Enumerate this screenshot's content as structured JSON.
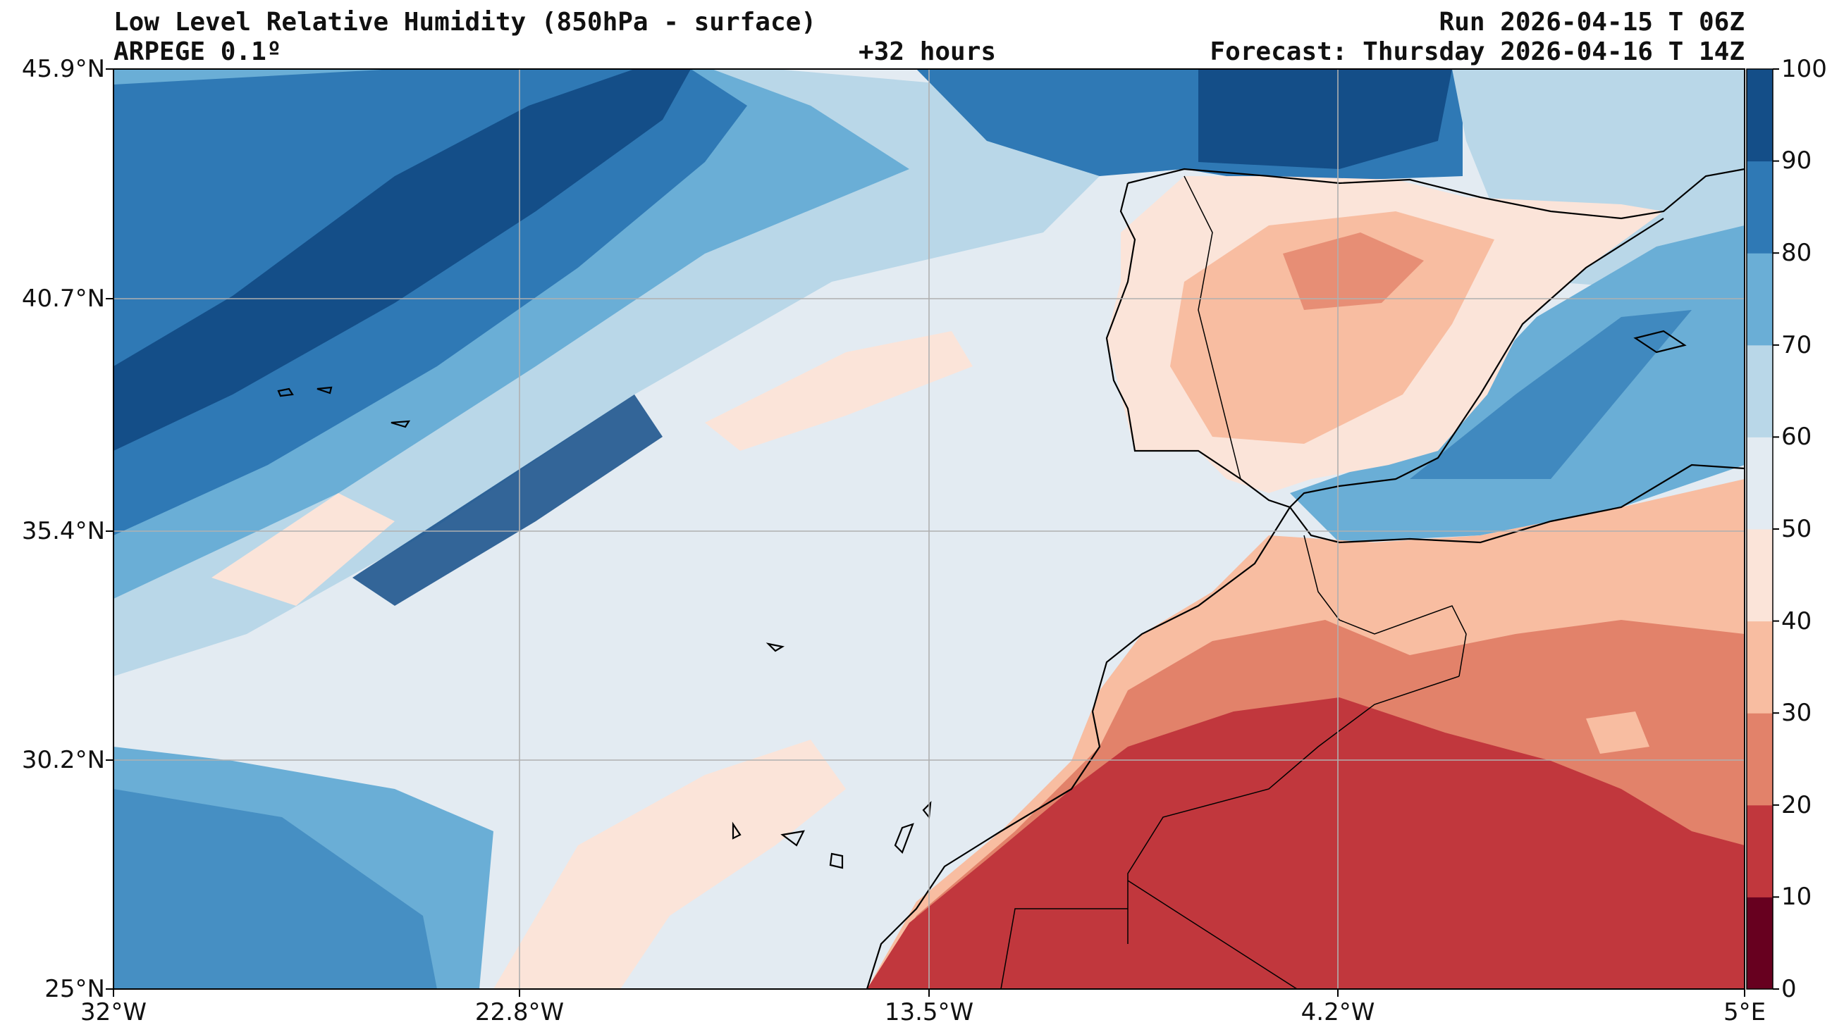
{
  "header": {
    "title": "Low Level Relative Humidity (850hPa - surface)",
    "model": "ARPEGE 0.1º",
    "lead_time": "+32 hours",
    "run": "Run 2026-04-15 T 06Z",
    "forecast": "Forecast: Thursday 2026-04-16 T 14Z"
  },
  "map": {
    "lat_labels": [
      "45.9°N",
      "40.7°N",
      "35.4°N",
      "30.2°N",
      "25°N"
    ],
    "lon_labels": [
      "32°W",
      "22.8°W",
      "13.5°W",
      "4.2°W",
      "5°E"
    ]
  },
  "colorbar": {
    "labels": [
      "100",
      "90",
      "80",
      "70",
      "60",
      "50",
      "40",
      "30",
      "20",
      "10",
      "0"
    ],
    "colors": [
      "#67001f",
      "#c1373d",
      "#e2826a",
      "#f8bda1",
      "#fbe4d9",
      "#e3ebf2",
      "#b9d7e8",
      "#6aaed6",
      "#2f79b5",
      "#144e88"
    ]
  }
}
